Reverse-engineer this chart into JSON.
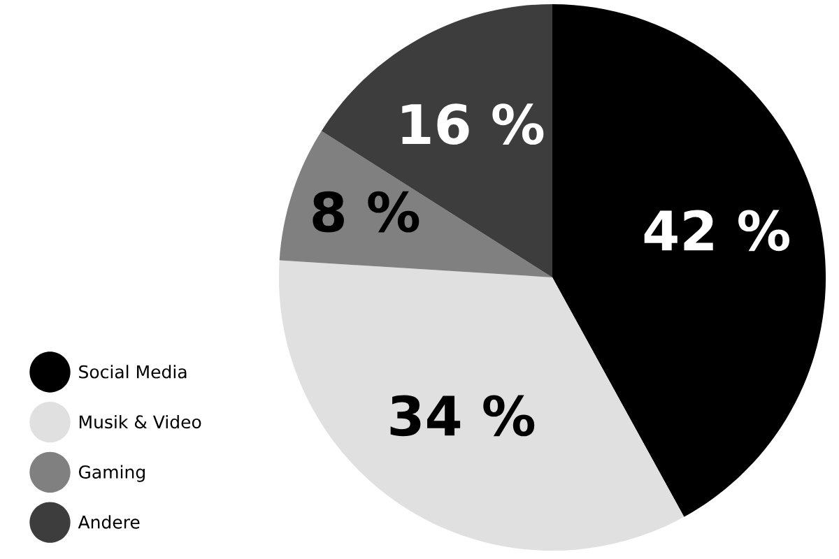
{
  "chart_data": {
    "type": "pie",
    "categories": [
      "Social Media",
      "Musik & Video",
      "Gaming",
      "Andere"
    ],
    "values": [
      42,
      34,
      8,
      16
    ],
    "colors": [
      "#000000",
      "#e0e0e0",
      "#808080",
      "#3d3d3d"
    ],
    "value_labels": [
      "42 %",
      "34 %",
      "8 %",
      "16 %"
    ],
    "legend": "bottom left"
  }
}
